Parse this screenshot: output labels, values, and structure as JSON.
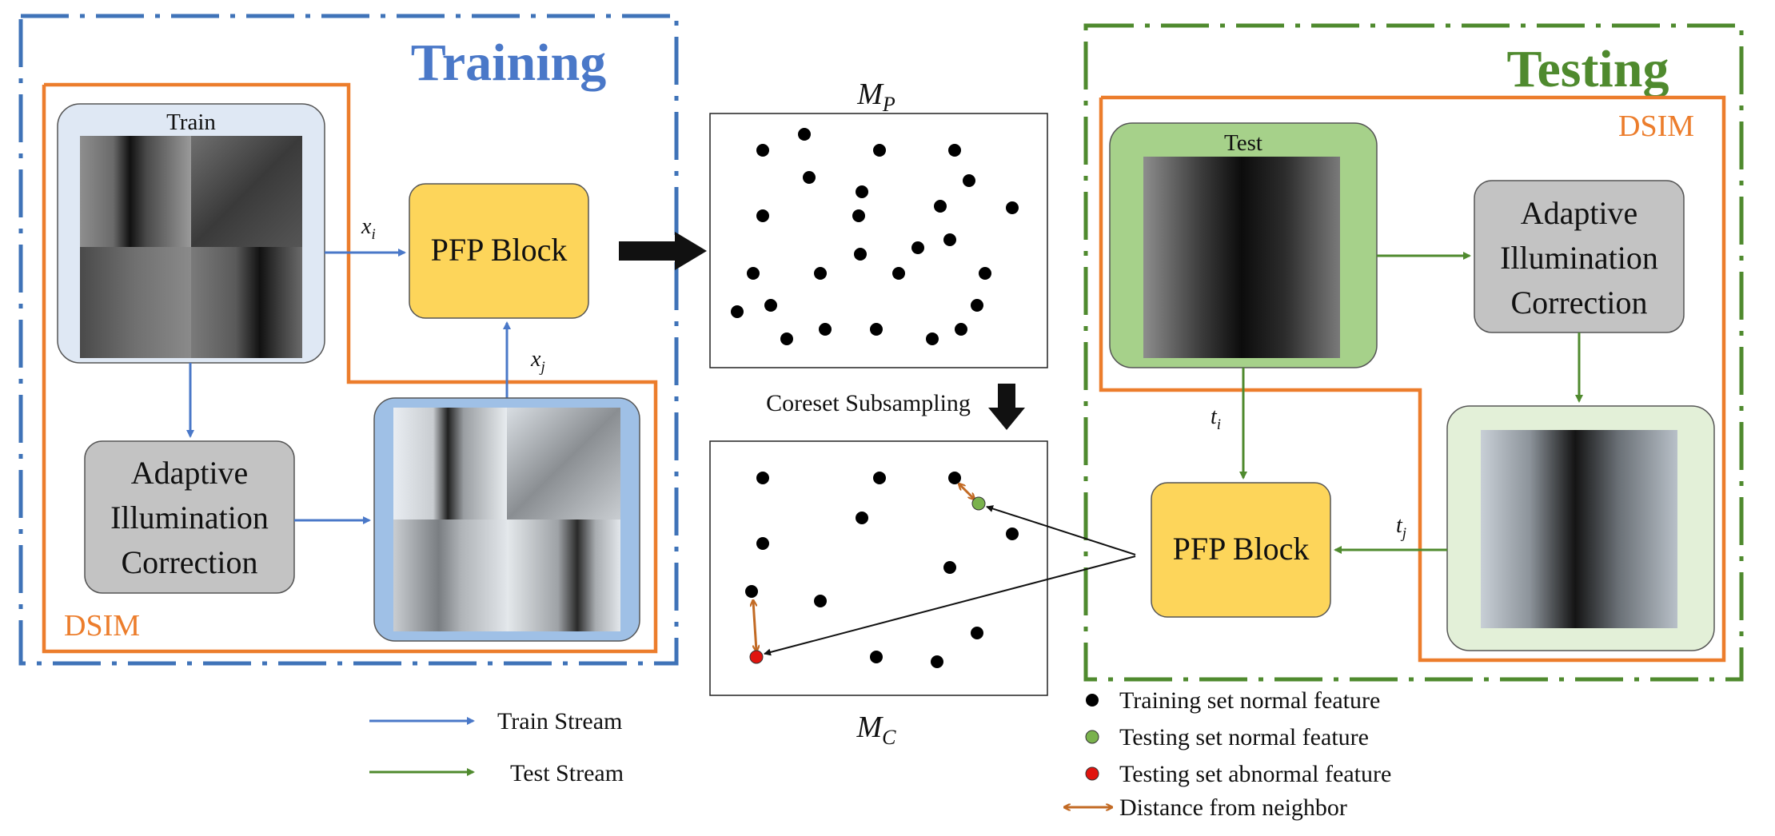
{
  "colors": {
    "training_blue": "#3f73b8",
    "testing_green": "#4f8a2e",
    "dsim_orange": "#ec7d2c",
    "pfp_fill": "#fdd55a",
    "aic_fill": "#c3c3c3",
    "train_img_fill": "#dfe8f4",
    "train_corrected_fill": "#9fc0e6",
    "test_img_fill": "#a6d18a",
    "test_corrected_fill": "#e3f0d8",
    "arrow_blue": "#4a78c8",
    "arrow_green": "#4f8a2e",
    "normal_test_point": "#7ab24d",
    "abnormal_point": "#e0140e",
    "distance_arrow": "#c26a24"
  },
  "training": {
    "title": "Training",
    "dsim_label": "DSIM",
    "train_image_label": "Train",
    "pfp_label": "PFP Block",
    "aic_lines": [
      "Adaptive",
      "Illumination",
      "Correction"
    ],
    "xi_base": "x",
    "xi_sub": "i",
    "xj_base": "x",
    "xj_sub": "j"
  },
  "testing": {
    "title": "Testing",
    "dsim_label": "DSIM",
    "test_image_label": "Test",
    "pfp_label": "PFP Block",
    "aic_lines": [
      "Adaptive",
      "Illumination",
      "Correction"
    ],
    "ti_base": "t",
    "ti_sub": "i",
    "tj_base": "t",
    "tj_sub": "j"
  },
  "memory": {
    "mp_base": "M",
    "mp_sub": "P",
    "mc_base": "M",
    "mc_sub": "C",
    "subsampling_label": "Coreset Subsampling"
  },
  "legend": {
    "train_stream": "Train Stream",
    "test_stream": "Test Stream",
    "training_normal": "Training set normal feature",
    "testing_normal": "Testing set normal feature",
    "testing_abnormal": "Testing set abnormal feature",
    "distance": "Distance from neighbor"
  }
}
